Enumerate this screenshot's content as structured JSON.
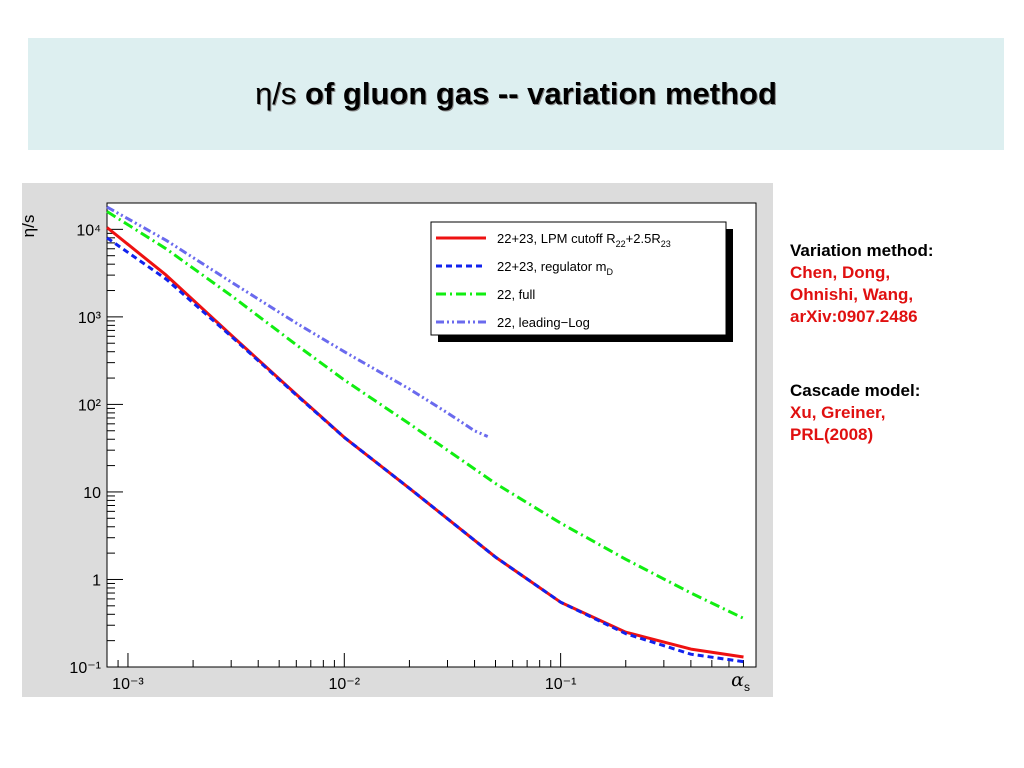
{
  "slide": {
    "title_symbol": "η/s",
    "title_rest": "of gluon gas -- variation method"
  },
  "notes": [
    {
      "heading": "Variation method:",
      "lines": [
        "Chen, Dong,",
        "Ohnishi,  Wang,",
        "arXiv:0907.2486"
      ]
    },
    {
      "heading": "Cascade model:",
      "lines": [
        "Xu, Greiner,",
        "PRL(2008)"
      ]
    }
  ],
  "chart_data": {
    "type": "line",
    "title": "",
    "xlabel": "αs",
    "ylabel": "η/s",
    "xscale": "log",
    "yscale": "log",
    "xlim": [
      0.0008,
      0.8
    ],
    "ylim": [
      0.1,
      20000
    ],
    "xticks": [
      {
        "value": 0.001,
        "label": "10⁻³"
      },
      {
        "value": 0.01,
        "label": "10⁻²"
      },
      {
        "value": 0.1,
        "label": "10⁻¹"
      }
    ],
    "yticks": [
      {
        "value": 0.1,
        "label": "10⁻¹"
      },
      {
        "value": 1,
        "label": "1"
      },
      {
        "value": 10,
        "label": "10"
      },
      {
        "value": 100,
        "label": "10²"
      },
      {
        "value": 1000,
        "label": "10³"
      },
      {
        "value": 10000,
        "label": "10⁴"
      }
    ],
    "grid": true,
    "legend_position": "top-right",
    "series": [
      {
        "name": "22+23, LPM cutoff R22+2.5R23",
        "label_main": "22+23, LPM cutoff R",
        "sub1": "22",
        "mid": "+2.5R",
        "sub2": "23",
        "color": "#ee1111",
        "dash": "",
        "x": [
          0.0008,
          0.0015,
          0.003,
          0.006,
          0.01,
          0.02,
          0.05,
          0.1,
          0.2,
          0.4,
          0.7
        ],
        "y": [
          10500,
          3000,
          620,
          130,
          42,
          11,
          1.8,
          0.55,
          0.25,
          0.16,
          0.13
        ]
      },
      {
        "name": "22+23, regulator mD",
        "label_main": "22+23, regulator m",
        "sub1": "D",
        "mid": "",
        "sub2": "",
        "color": "#1122ee",
        "dash": "6,4",
        "x": [
          0.0008,
          0.0015,
          0.003,
          0.006,
          0.01,
          0.02,
          0.05,
          0.1,
          0.2,
          0.4,
          0.7
        ],
        "y": [
          8000,
          2700,
          600,
          128,
          42,
          11,
          1.8,
          0.55,
          0.24,
          0.14,
          0.115
        ]
      },
      {
        "name": "22, full",
        "label_main": "22, full",
        "sub1": "",
        "mid": "",
        "sub2": "",
        "color": "#11ee11",
        "dash": "10,4,2,4",
        "x": [
          0.0008,
          0.0015,
          0.003,
          0.006,
          0.01,
          0.02,
          0.05,
          0.1,
          0.2,
          0.4,
          0.7
        ],
        "y": [
          16000,
          6000,
          1750,
          480,
          190,
          60,
          12.5,
          4.4,
          1.7,
          0.7,
          0.36
        ]
      },
      {
        "name": "22, leading-Log",
        "label_main": "22, leading−Log",
        "sub1": "",
        "mid": "",
        "sub2": "",
        "color": "#6a6aee",
        "dash": "8,3,2,3,2,3",
        "x": [
          0.0008,
          0.0015,
          0.003,
          0.006,
          0.01,
          0.02,
          0.03,
          0.04,
          0.046
        ],
        "y": [
          18000,
          7500,
          2500,
          850,
          400,
          150,
          80,
          50,
          43
        ]
      }
    ]
  }
}
